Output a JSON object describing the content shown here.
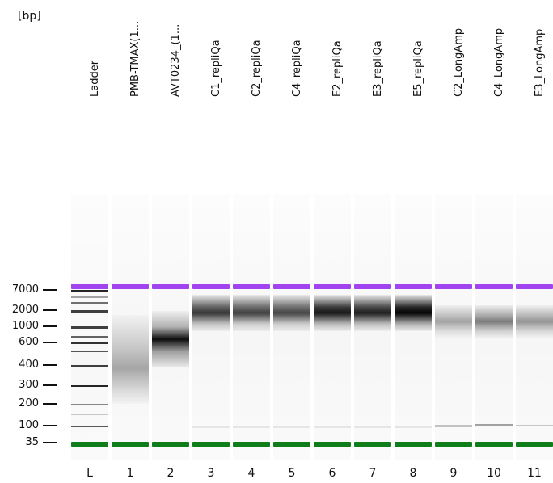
{
  "axis": {
    "unit_label": "[bp]",
    "labels": [
      {
        "text": "7000",
        "value": 7000
      },
      {
        "text": "2000",
        "value": 2000
      },
      {
        "text": "1000",
        "value": 1000
      },
      {
        "text": "600",
        "value": 600
      },
      {
        "text": "400",
        "value": 400
      },
      {
        "text": "300",
        "value": 300
      },
      {
        "text": "200",
        "value": 200
      },
      {
        "text": "100",
        "value": 100
      },
      {
        "text": "35",
        "value": 35
      }
    ]
  },
  "markers": {
    "upper_color": "#a144f0",
    "lower_color": "#0f7d19"
  },
  "lanes": [
    {
      "id": "L",
      "name": "Ladder"
    },
    {
      "id": "1",
      "name": "PMB-TMAX(1..."
    },
    {
      "id": "2",
      "name": "AVT0234_(1..."
    },
    {
      "id": "3",
      "name": "C1_repliQa"
    },
    {
      "id": "4",
      "name": "C2_repliQa"
    },
    {
      "id": "5",
      "name": "C4_repliQa"
    },
    {
      "id": "6",
      "name": "E2_repliQa"
    },
    {
      "id": "7",
      "name": "E3_repliQa"
    },
    {
      "id": "8",
      "name": "E5_repliQa"
    },
    {
      "id": "9",
      "name": "C2_LongAmp"
    },
    {
      "id": "10",
      "name": "C4_LongAmp"
    },
    {
      "id": "11",
      "name": "E3_LongAmp"
    }
  ]
}
